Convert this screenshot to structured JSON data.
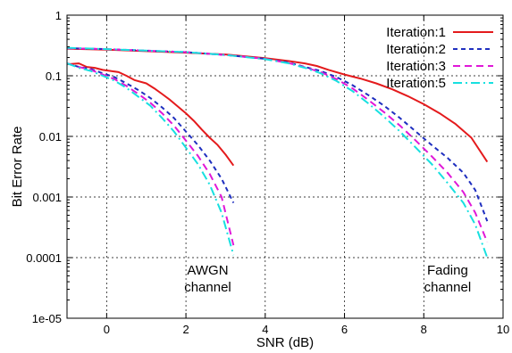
{
  "chart_data": {
    "type": "line",
    "title": "",
    "xlabel": "SNR (dB)",
    "ylabel": "Bit Error Rate",
    "xlim": [
      -1,
      10
    ],
    "ylim": [
      1e-05,
      1
    ],
    "yscale": "log",
    "grid": true,
    "legend_position": "top-right",
    "x_ticks": [
      0,
      2,
      4,
      6,
      8,
      10
    ],
    "x_tick_labels": [
      "0",
      "2",
      "4",
      "6",
      "8",
      "10"
    ],
    "y_ticks": [
      1,
      0.1,
      0.01,
      0.001,
      0.0001,
      1e-05
    ],
    "y_tick_labels": [
      "1",
      "0.1",
      "0.01",
      "0.001",
      "0.0001",
      "1e-05"
    ],
    "annotations": [
      {
        "lines": [
          "AWGN",
          "channel"
        ],
        "x": 2.55,
        "y": 4e-05
      },
      {
        "lines": [
          "Fading",
          "channel"
        ],
        "x": 8.6,
        "y": 4e-05
      }
    ],
    "series": [
      {
        "name": "Iteration:1",
        "color": "#e41a1c",
        "dash": "",
        "segments": [
          [
            [
              -1,
              0.155
            ],
            [
              -0.7,
              0.16
            ],
            [
              -0.5,
              0.14
            ],
            [
              -0.3,
              0.135
            ],
            [
              -0.1,
              0.125
            ],
            [
              0.1,
              0.12
            ],
            [
              0.3,
              0.115
            ],
            [
              0.5,
              0.1
            ],
            [
              0.7,
              0.085
            ],
            [
              1.0,
              0.075
            ],
            [
              1.2,
              0.062
            ],
            [
              1.4,
              0.05
            ],
            [
              1.6,
              0.04
            ],
            [
              1.8,
              0.031
            ],
            [
              2.0,
              0.024
            ],
            [
              2.2,
              0.018
            ],
            [
              2.4,
              0.013
            ],
            [
              2.6,
              0.0095
            ],
            [
              2.8,
              0.0072
            ],
            [
              3.0,
              0.005
            ],
            [
              3.2,
              0.0033
            ]
          ],
          [
            [
              -1,
              0.28
            ],
            [
              0,
              0.27
            ],
            [
              1,
              0.255
            ],
            [
              2,
              0.24
            ],
            [
              3,
              0.225
            ],
            [
              4,
              0.195
            ],
            [
              4.6,
              0.175
            ],
            [
              5.0,
              0.16
            ],
            [
              5.3,
              0.145
            ],
            [
              5.6,
              0.125
            ],
            [
              6.0,
              0.105
            ],
            [
              6.4,
              0.09
            ],
            [
              6.8,
              0.075
            ],
            [
              7.2,
              0.06
            ],
            [
              7.6,
              0.046
            ],
            [
              8.0,
              0.034
            ],
            [
              8.4,
              0.024
            ],
            [
              8.8,
              0.016
            ],
            [
              9.2,
              0.0095
            ],
            [
              9.6,
              0.0038
            ]
          ]
        ]
      },
      {
        "name": "Iteration:2",
        "color": "#1f2fbf",
        "dash": "5,4",
        "segments": [
          [
            [
              -1,
              0.16
            ],
            [
              -0.7,
              0.14
            ],
            [
              -0.4,
              0.13
            ],
            [
              -0.1,
              0.11
            ],
            [
              0.2,
              0.095
            ],
            [
              0.5,
              0.075
            ],
            [
              0.8,
              0.058
            ],
            [
              1.1,
              0.043
            ],
            [
              1.4,
              0.03
            ],
            [
              1.7,
              0.02
            ],
            [
              2.0,
              0.012
            ],
            [
              2.3,
              0.0072
            ],
            [
              2.6,
              0.004
            ],
            [
              2.9,
              0.002
            ],
            [
              3.2,
              0.0008
            ]
          ],
          [
            [
              -1,
              0.285
            ],
            [
              0,
              0.275
            ],
            [
              1,
              0.26
            ],
            [
              2,
              0.245
            ],
            [
              3,
              0.22
            ],
            [
              4,
              0.19
            ],
            [
              4.6,
              0.165
            ],
            [
              5.0,
              0.14
            ],
            [
              5.4,
              0.12
            ],
            [
              5.8,
              0.095
            ],
            [
              6.2,
              0.07
            ],
            [
              6.6,
              0.048
            ],
            [
              7.0,
              0.032
            ],
            [
              7.4,
              0.02
            ],
            [
              7.8,
              0.012
            ],
            [
              8.2,
              0.0072
            ],
            [
              8.6,
              0.0044
            ],
            [
              9.0,
              0.0025
            ],
            [
              9.3,
              0.0013
            ],
            [
              9.6,
              0.0004
            ]
          ]
        ]
      },
      {
        "name": "Iteration:3",
        "color": "#e018d8",
        "dash": "8,5",
        "segments": [
          [
            [
              -1,
              0.16
            ],
            [
              -0.7,
              0.14
            ],
            [
              -0.4,
              0.125
            ],
            [
              -0.1,
              0.105
            ],
            [
              0.2,
              0.088
            ],
            [
              0.5,
              0.068
            ],
            [
              0.8,
              0.05
            ],
            [
              1.1,
              0.036
            ],
            [
              1.4,
              0.024
            ],
            [
              1.7,
              0.015
            ],
            [
              2.0,
              0.0085
            ],
            [
              2.3,
              0.0048
            ],
            [
              2.6,
              0.0024
            ],
            [
              2.9,
              0.001
            ],
            [
              3.2,
              0.00016
            ]
          ],
          [
            [
              -1,
              0.285
            ],
            [
              0,
              0.275
            ],
            [
              1,
              0.26
            ],
            [
              2,
              0.245
            ],
            [
              3,
              0.22
            ],
            [
              4,
              0.19
            ],
            [
              4.6,
              0.162
            ],
            [
              5.0,
              0.138
            ],
            [
              5.4,
              0.115
            ],
            [
              5.8,
              0.088
            ],
            [
              6.2,
              0.062
            ],
            [
              6.6,
              0.04
            ],
            [
              7.0,
              0.025
            ],
            [
              7.4,
              0.015
            ],
            [
              7.8,
              0.0085
            ],
            [
              8.2,
              0.0047
            ],
            [
              8.6,
              0.0025
            ],
            [
              9.0,
              0.0012
            ],
            [
              9.3,
              0.00055
            ],
            [
              9.6,
              0.00018
            ]
          ]
        ]
      },
      {
        "name": "Iteration:5",
        "color": "#17e0e0",
        "dash": "10,4,2,4",
        "segments": [
          [
            [
              -1,
              0.16
            ],
            [
              -0.7,
              0.135
            ],
            [
              -0.4,
              0.12
            ],
            [
              -0.1,
              0.1
            ],
            [
              0.2,
              0.083
            ],
            [
              0.5,
              0.063
            ],
            [
              0.8,
              0.045
            ],
            [
              1.1,
              0.032
            ],
            [
              1.4,
              0.02
            ],
            [
              1.7,
              0.012
            ],
            [
              2.0,
              0.0065
            ],
            [
              2.3,
              0.0035
            ],
            [
              2.6,
              0.0016
            ],
            [
              2.9,
              0.00055
            ],
            [
              3.2,
              0.00011
            ]
          ],
          [
            [
              -1,
              0.29
            ],
            [
              0,
              0.275
            ],
            [
              1,
              0.26
            ],
            [
              2,
              0.245
            ],
            [
              3,
              0.22
            ],
            [
              4,
              0.188
            ],
            [
              4.6,
              0.16
            ],
            [
              5.0,
              0.135
            ],
            [
              5.4,
              0.11
            ],
            [
              5.8,
              0.082
            ],
            [
              6.2,
              0.056
            ],
            [
              6.6,
              0.035
            ],
            [
              7.0,
              0.021
            ],
            [
              7.4,
              0.012
            ],
            [
              7.8,
              0.0065
            ],
            [
              8.2,
              0.0035
            ],
            [
              8.6,
              0.0017
            ],
            [
              9.0,
              0.0008
            ],
            [
              9.3,
              0.00035
            ],
            [
              9.6,
              0.0001
            ]
          ]
        ]
      }
    ]
  }
}
